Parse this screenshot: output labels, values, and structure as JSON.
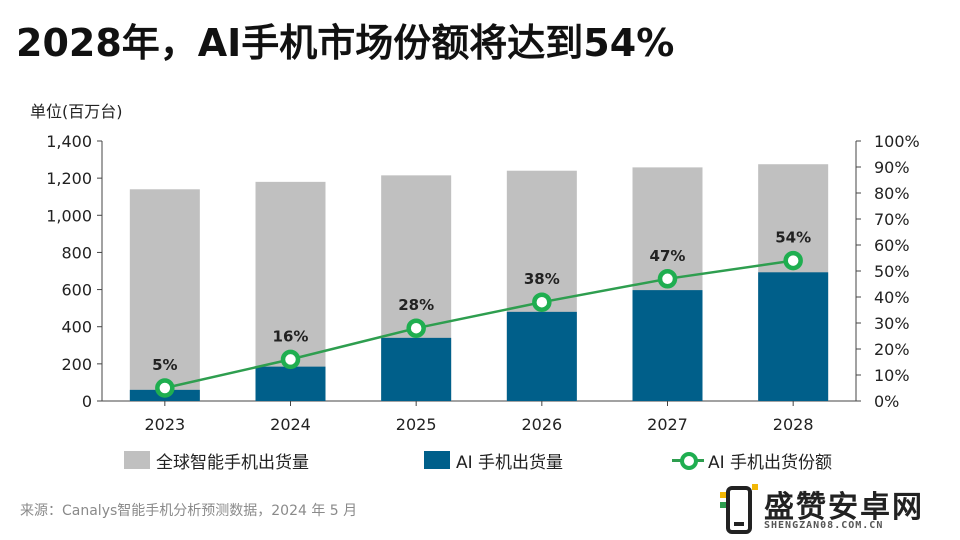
{
  "title": "2028年，AI手机市场份额将达到54%",
  "unit_label": "单位(百万台)",
  "source": "来源：Canalys智能手机分析预测数据，2024 年 5 月",
  "logo": {
    "name": "盛赞安卓网",
    "url": "SHENGZAN08.COM.CN",
    "icon": "phone-icon"
  },
  "colors": {
    "total": "#c0c0c0",
    "ai": "#005f8a",
    "line": "#2e9e4f",
    "marker": "#1fae50"
  },
  "chart_data": {
    "type": "bar",
    "categories": [
      "2023",
      "2024",
      "2025",
      "2026",
      "2027",
      "2028"
    ],
    "series": [
      {
        "name": "全球智能手机出货量",
        "type": "bar",
        "values": [
          1140,
          1180,
          1215,
          1240,
          1258,
          1275
        ]
      },
      {
        "name": "AI 手机出货量",
        "type": "bar",
        "values": [
          60,
          185,
          340,
          480,
          597,
          693
        ]
      },
      {
        "name": "AI 手机出货份额",
        "type": "line",
        "axis": "right",
        "values": [
          5,
          16,
          28,
          38,
          47,
          54
        ]
      }
    ],
    "data_labels": [
      "5%",
      "16%",
      "28%",
      "38%",
      "47%",
      "54%"
    ],
    "y_left": {
      "min": 0,
      "max": 1400,
      "ticks": [
        "0",
        "200",
        "400",
        "600",
        "800",
        "1,000",
        "1,200",
        "1,400"
      ]
    },
    "y_right": {
      "min": 0,
      "max": 100,
      "ticks": [
        "0%",
        "10%",
        "20%",
        "30%",
        "40%",
        "50%",
        "60%",
        "70%",
        "80%",
        "90%",
        "100%"
      ]
    },
    "grid": false,
    "legend_position": "bottom"
  }
}
